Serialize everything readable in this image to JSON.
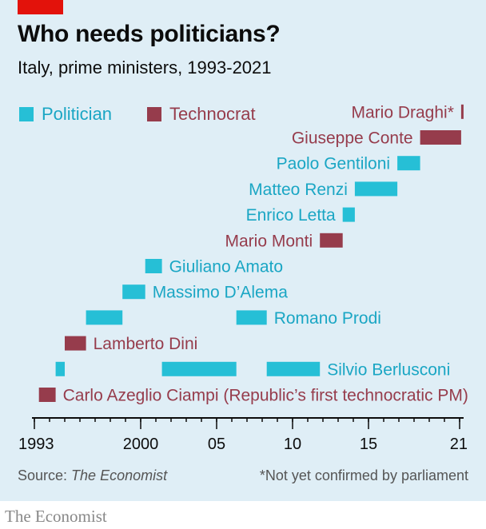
{
  "header": {
    "title": "Who needs politicians?",
    "subtitle": "Italy, prime ministers, 1993-2021"
  },
  "colors": {
    "politician": "#26bfd6",
    "technocrat": "#963c4c",
    "brand_red": "#e3120b",
    "background": "#dfeef6"
  },
  "chart_data": {
    "type": "bar",
    "subtype": "gantt",
    "title": "Who needs politicians?",
    "subtitle": "Italy, prime ministers, 1993-2021",
    "legend": {
      "placement": "top-left",
      "entries": [
        {
          "key": "politician",
          "label": "Politician"
        },
        {
          "key": "technocrat",
          "label": "Technocrat"
        }
      ]
    },
    "x_axis": {
      "min": 1993,
      "max": 2021.4,
      "ticks": [
        {
          "value": 1993,
          "label": "1993"
        },
        {
          "value": 2000,
          "label": "2000"
        },
        {
          "value": 2005,
          "label": "05"
        },
        {
          "value": 2010,
          "label": "10"
        },
        {
          "value": 2015,
          "label": "15"
        },
        {
          "value": 2021,
          "label": "21"
        }
      ]
    },
    "grid": false,
    "rows": [
      {
        "name": "Carlo Azeglio Ciampi (Republic’s first technocratic PM)",
        "type": "technocrat",
        "terms": [
          [
            1993.3,
            1994.4
          ]
        ]
      },
      {
        "name": "Silvio Berlusconi",
        "type": "politician",
        "terms": [
          [
            1994.4,
            1995.0
          ],
          [
            2001.4,
            2006.3
          ],
          [
            2008.3,
            2011.8
          ]
        ]
      },
      {
        "name": "Lamberto Dini",
        "type": "technocrat",
        "terms": [
          [
            1995.0,
            1996.4
          ]
        ]
      },
      {
        "name": "Romano Prodi",
        "type": "politician",
        "terms": [
          [
            1996.4,
            1998.8
          ],
          [
            2006.3,
            2008.3
          ]
        ]
      },
      {
        "name": "Massimo D’Alema",
        "type": "politician",
        "terms": [
          [
            1998.8,
            2000.3
          ]
        ]
      },
      {
        "name": "Giuliano Amato",
        "type": "politician",
        "terms": [
          [
            2000.3,
            2001.4
          ]
        ]
      },
      {
        "name": "Mario Monti",
        "type": "technocrat",
        "terms": [
          [
            2011.8,
            2013.3
          ]
        ]
      },
      {
        "name": "Enrico Letta",
        "type": "politician",
        "terms": [
          [
            2013.3,
            2014.1
          ]
        ]
      },
      {
        "name": "Matteo Renzi",
        "type": "politician",
        "terms": [
          [
            2014.1,
            2016.9
          ]
        ]
      },
      {
        "name": "Paolo Gentiloni",
        "type": "politician",
        "terms": [
          [
            2016.9,
            2018.4
          ]
        ]
      },
      {
        "name": "Giuseppe Conte",
        "type": "technocrat",
        "terms": [
          [
            2018.4,
            2021.1
          ]
        ]
      },
      {
        "name": "Mario Draghi*",
        "type": "technocrat",
        "terms": [
          [
            2021.1,
            2021.25
          ]
        ]
      }
    ]
  },
  "footer": {
    "source_prefix": "Source: ",
    "source_name": "The Economist",
    "note": "*Not yet confirmed by parliament"
  },
  "brand": "The Economist"
}
